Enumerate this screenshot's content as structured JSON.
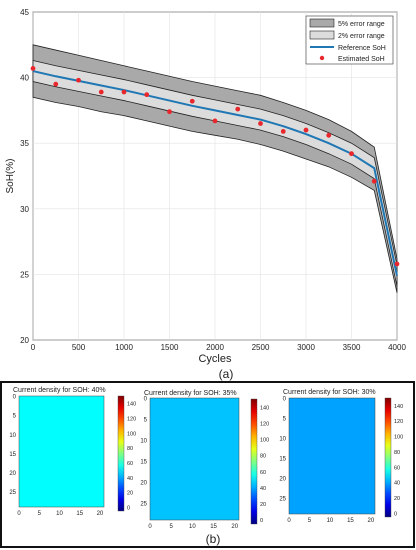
{
  "chart_data": [
    {
      "type": "line",
      "panel_label": "(a)",
      "xlabel": "Cycles",
      "ylabel": "SoH(%)",
      "xlim": [
        0,
        4000
      ],
      "ylim": [
        20,
        45
      ],
      "xticks": [
        "0",
        "500",
        "1000",
        "1500",
        "2000",
        "2500",
        "3000",
        "3500",
        "4000"
      ],
      "yticks": [
        "20",
        "25",
        "30",
        "35",
        "40",
        "45"
      ],
      "grid": true,
      "legend_position": "top-right",
      "legend": [
        "5% error range",
        "2% error range",
        "Reference SoH",
        "Estimated SoH"
      ],
      "x": [
        0,
        250,
        500,
        750,
        1000,
        1250,
        1500,
        1750,
        2000,
        2250,
        2500,
        2750,
        3000,
        3250,
        3500,
        3750,
        4000
      ],
      "series": [
        {
          "name": "Reference SoH",
          "values": [
            40.5,
            40.1,
            39.75,
            39.4,
            39.05,
            38.65,
            38.25,
            37.85,
            37.5,
            37.15,
            36.8,
            36.3,
            35.7,
            35.0,
            34.2,
            33.1,
            24.9
          ]
        },
        {
          "name": "Estimated SoH",
          "values": [
            40.7,
            39.5,
            39.8,
            38.9,
            38.9,
            38.7,
            37.4,
            38.2,
            36.7,
            37.6,
            36.5,
            35.9,
            36.0,
            35.6,
            34.2,
            32.1,
            25.8
          ]
        },
        {
          "name": "2% error range",
          "upper": [
            41.3,
            40.9,
            40.55,
            40.2,
            39.85,
            39.45,
            39.05,
            38.65,
            38.3,
            37.95,
            37.6,
            37.1,
            36.5,
            35.8,
            35.0,
            33.9,
            25.7
          ],
          "lower": [
            39.7,
            39.3,
            38.95,
            38.6,
            38.25,
            37.85,
            37.45,
            37.05,
            36.7,
            36.35,
            36.0,
            35.5,
            34.9,
            34.2,
            33.4,
            32.3,
            24.1
          ]
        },
        {
          "name": "5% error range",
          "upper": [
            42.5,
            42.1,
            41.7,
            41.3,
            40.9,
            40.5,
            40.1,
            39.7,
            39.35,
            39.0,
            38.65,
            38.1,
            37.5,
            36.8,
            35.9,
            34.7,
            26.2
          ],
          "lower": [
            38.5,
            38.1,
            37.8,
            37.4,
            37.1,
            36.7,
            36.3,
            35.9,
            35.6,
            35.3,
            34.9,
            34.4,
            33.8,
            33.2,
            32.4,
            31.4,
            23.6
          ]
        }
      ]
    },
    {
      "type": "heatmap",
      "panel_label": "(b)",
      "colorbar_ticks": [
        "0",
        "20",
        "40",
        "60",
        "80",
        "100",
        "120",
        "140"
      ],
      "colorbar_range": [
        -5,
        150
      ],
      "xticks": [
        "0",
        "5",
        "10",
        "15",
        "20"
      ],
      "yticks": [
        "0",
        "5",
        "10",
        "15",
        "20",
        "25"
      ],
      "x_range": [
        0,
        21
      ],
      "y_range": [
        0,
        29
      ],
      "panels": [
        {
          "title": "Current density for SOH: 40%",
          "value": 53
        },
        {
          "title": "Current density for SOH: 35%",
          "value": 44
        },
        {
          "title": "Current density for SOH: 30%",
          "value": 39
        }
      ]
    }
  ]
}
